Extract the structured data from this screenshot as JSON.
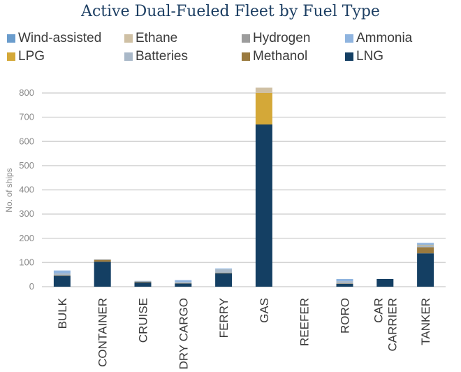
{
  "chart_data": {
    "type": "bar",
    "stacked": true,
    "title": "Active Dual-Fueled Fleet by Fuel Type",
    "xlabel": "",
    "ylabel": "No. of ships",
    "ylim": [
      0,
      820
    ],
    "yticks": [
      0,
      100,
      200,
      300,
      400,
      500,
      600,
      700,
      800
    ],
    "grid": true,
    "legend_position": "top",
    "categories": [
      "BULK",
      "CONTAINER",
      "CRUISE",
      "DRY CARGO",
      "FERRY",
      "GAS",
      "REEFER",
      "RORO",
      "CAR CARRIER",
      "TANKER"
    ],
    "category_lines": [
      [
        "BULK"
      ],
      [
        "CONTAINER"
      ],
      [
        "CRUISE"
      ],
      [
        "DRY CARGO"
      ],
      [
        "FERRY"
      ],
      [
        "GAS"
      ],
      [
        "REEFER"
      ],
      [
        "RORO"
      ],
      [
        "CAR",
        "CARRIER"
      ],
      [
        "TANKER"
      ]
    ],
    "series": [
      {
        "name": "LNG",
        "color": "#143f63",
        "values": [
          45,
          103,
          18,
          13,
          55,
          670,
          0,
          12,
          32,
          138
        ]
      },
      {
        "name": "Methanol",
        "color": "#9a7a3f",
        "values": [
          2,
          8,
          2,
          1,
          2,
          0,
          0,
          1,
          0,
          25
        ]
      },
      {
        "name": "Batteries",
        "color": "#a9b8c8",
        "values": [
          8,
          2,
          4,
          6,
          15,
          0,
          0,
          10,
          0,
          8
        ]
      },
      {
        "name": "LPG",
        "color": "#d4a838",
        "values": [
          0,
          0,
          0,
          0,
          0,
          130,
          0,
          0,
          0,
          2
        ]
      },
      {
        "name": "Ammonia",
        "color": "#8fb4df",
        "values": [
          12,
          0,
          0,
          7,
          3,
          0,
          0,
          9,
          0,
          8
        ]
      },
      {
        "name": "Hydrogen",
        "color": "#9c9c9c",
        "values": [
          0,
          0,
          0,
          0,
          0,
          0,
          0,
          0,
          0,
          0
        ]
      },
      {
        "name": "Ethane",
        "color": "#cfc0a4",
        "values": [
          0,
          0,
          0,
          0,
          0,
          22,
          0,
          0,
          0,
          0
        ]
      },
      {
        "name": "Wind-assisted",
        "color": "#6a9ccc",
        "values": [
          0,
          0,
          0,
          0,
          0,
          0,
          0,
          0,
          0,
          0
        ]
      }
    ],
    "legend_order": [
      "Wind-assisted",
      "Ethane",
      "Hydrogen",
      "Ammonia",
      "LPG",
      "Batteries",
      "Methanol",
      "LNG"
    ]
  }
}
